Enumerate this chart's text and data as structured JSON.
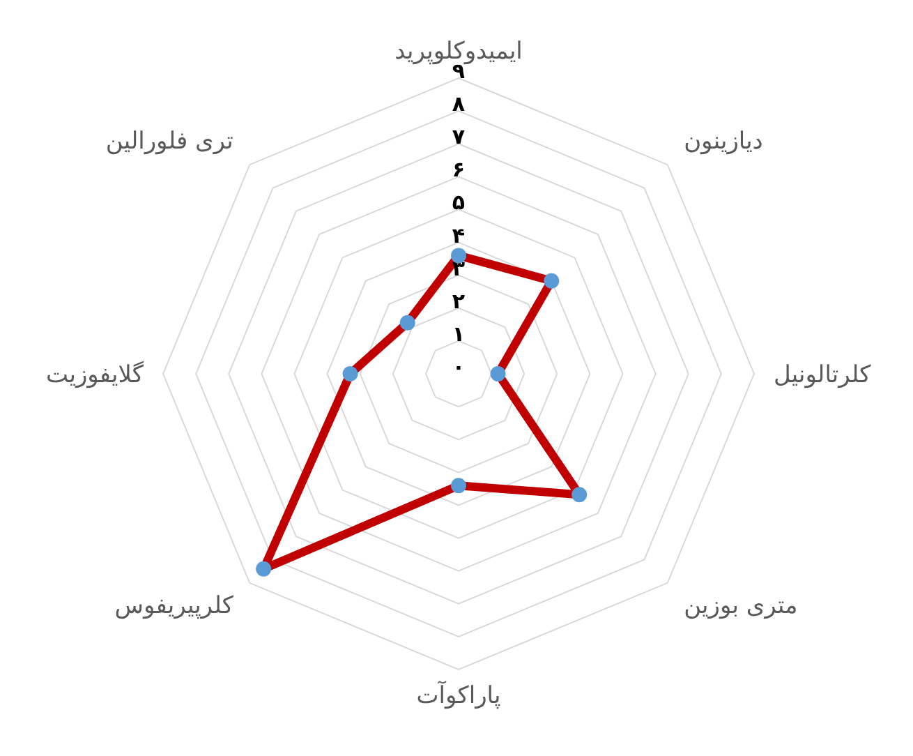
{
  "chart_data": {
    "type": "radar",
    "categories": [
      "ایمیدوکلوپرید",
      "دیازینون",
      "کلرتالونیل",
      "متری بوزین",
      "پاراکوآت",
      "کلرپیریفوس",
      "گلایفوزیت",
      "تری فلورالین"
    ],
    "series": [
      {
        "color": "#c00000",
        "values": [
          3.6,
          4.0,
          1.2,
          5.2,
          3.4,
          8.4,
          3.3,
          2.2
        ]
      }
    ],
    "ylim": [
      0,
      9
    ],
    "yticks": [
      {
        "value": 0,
        "label": "۰"
      },
      {
        "value": 1,
        "label": "۱"
      },
      {
        "value": 2,
        "label": "۲"
      },
      {
        "value": 3,
        "label": "۳"
      },
      {
        "value": 4,
        "label": "۴"
      },
      {
        "value": 5,
        "label": "۵"
      },
      {
        "value": 6,
        "label": "۶"
      },
      {
        "value": 7,
        "label": "۷"
      },
      {
        "value": 8,
        "label": "۸"
      },
      {
        "value": 9,
        "label": "۹"
      }
    ],
    "grid": true,
    "marker": "circle",
    "legend": false
  }
}
